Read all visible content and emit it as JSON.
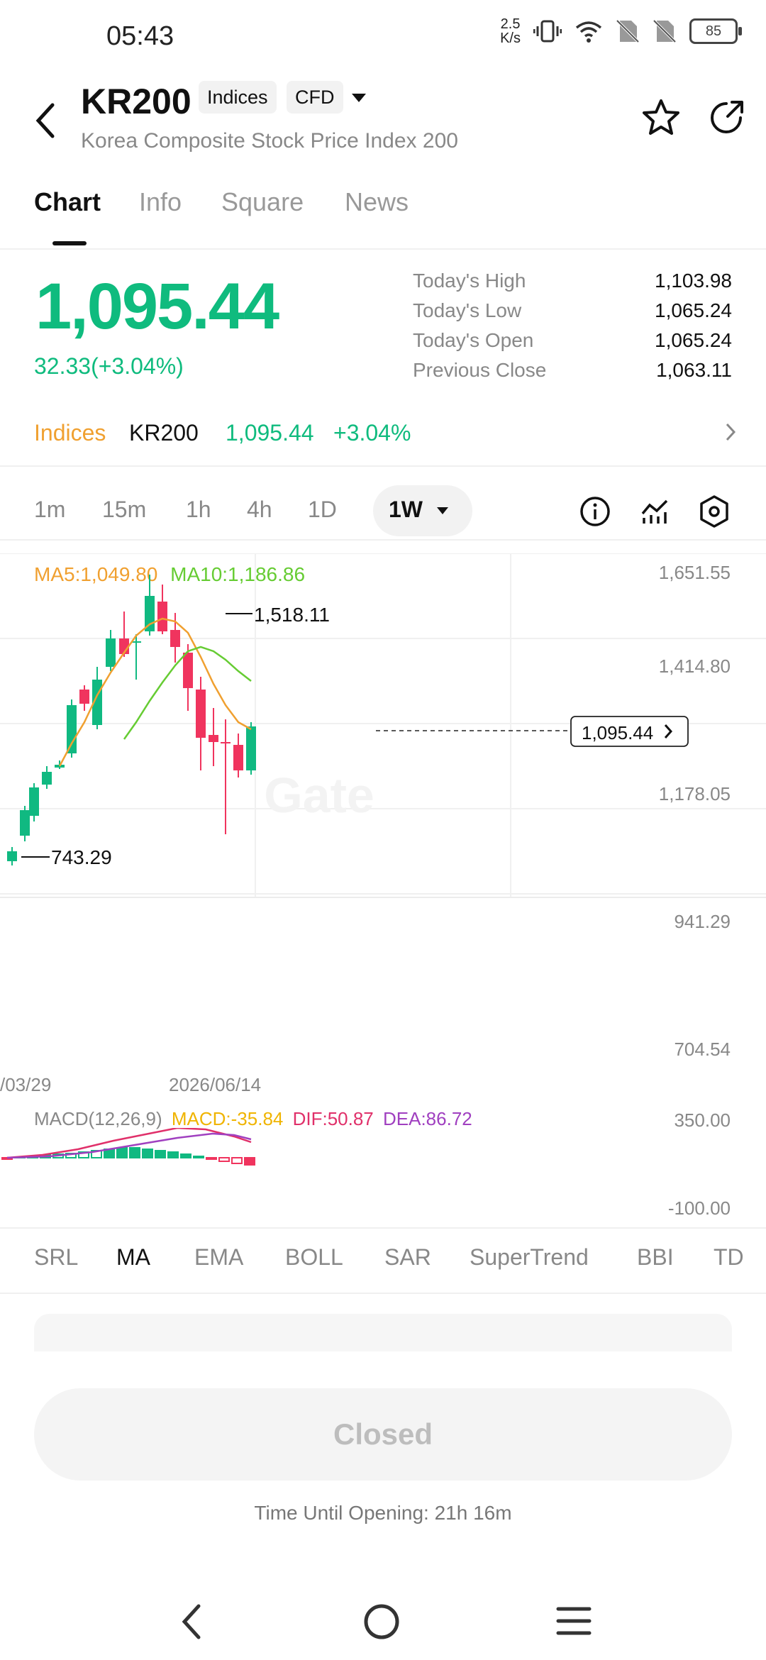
{
  "status": {
    "time": "05:43",
    "net_speed_top": "2.5",
    "net_speed_bottom": "K/s",
    "battery": "85"
  },
  "header": {
    "symbol": "KR200",
    "badge_type": "Indices",
    "badge_product": "CFD",
    "name": "Korea Composite Stock Price Index 200"
  },
  "tabs": [
    "Chart",
    "Info",
    "Square",
    "News"
  ],
  "quote": {
    "price": "1,095.44",
    "change": "32.33(+3.04%)",
    "stats": [
      {
        "label": "Today's High",
        "value": "1,103.98"
      },
      {
        "label": "Today's Low",
        "value": "1,065.24"
      },
      {
        "label": "Today's Open",
        "value": "1,065.24"
      },
      {
        "label": "Previous Close",
        "value": "1,063.11"
      }
    ]
  },
  "index_row": {
    "label": "Indices",
    "symbol": "KR200",
    "price": "1,095.44",
    "change": "+3.04%"
  },
  "intervals": [
    "1m",
    "15m",
    "1h",
    "4h",
    "1D"
  ],
  "interval_active": "1W",
  "chart": {
    "ma5": "MA5:1,049.80",
    "ma10": "MA10:1,186.86",
    "y_ticks": [
      "1,651.55",
      "1,414.80",
      "1,178.05",
      "941.29",
      "704.54"
    ],
    "x_ticks": [
      "/03/29",
      "2026/06/14"
    ],
    "high_label": "1,518.11",
    "low_label": "743.29",
    "last_price_tag": "1,095.44",
    "watermark": "Gate",
    "colors": {
      "up": "#10b981",
      "down": "#f0345e",
      "ma5": "#f0a030",
      "ma10": "#66cc33"
    }
  },
  "macd": {
    "title": "MACD(12,26,9)",
    "macd": "MACD:-35.84",
    "dif": "DIF:50.87",
    "dea": "DEA:86.72",
    "y_top": "350.00",
    "y_bottom": "-100.00"
  },
  "indicators": [
    "SRL",
    "MA",
    "EMA",
    "BOLL",
    "SAR",
    "SuperTrend",
    "BBI",
    "TD"
  ],
  "indicator_active": "MA",
  "footer": {
    "button": "Closed",
    "until": "Time Until Opening: 21h 16m"
  }
}
